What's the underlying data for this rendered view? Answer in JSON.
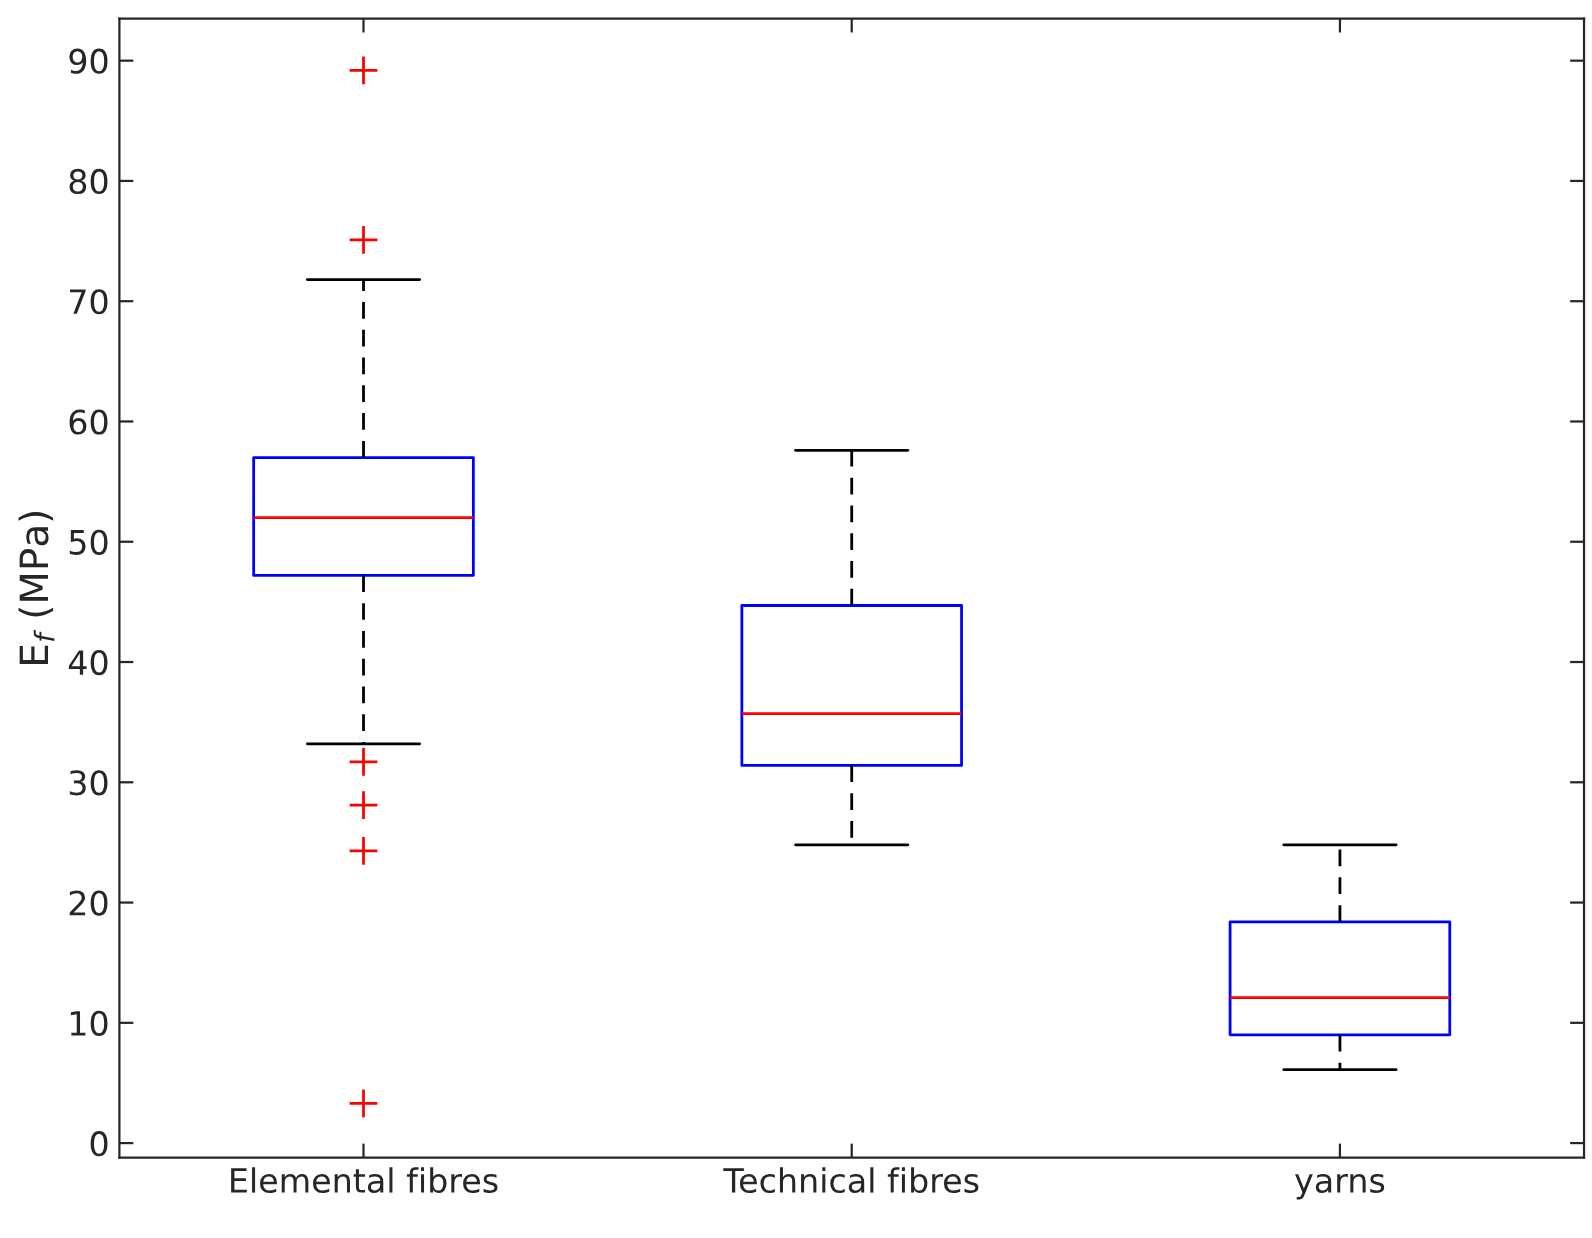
{
  "chart_data": {
    "type": "box",
    "ylabel": "E$_{f}$ (MPa)",
    "categories": [
      "Elemental fibres",
      "Technical fibres",
      "yarns"
    ],
    "color": "#0000ff",
    "boxes": [
      {
        "low": 33.2,
        "q1": 47.2,
        "median": 52.0,
        "q3": 57.0,
        "high": 71.8,
        "outliers": [
          89.2,
          75.1,
          31.7,
          28.1,
          24.3,
          3.3
        ]
      },
      {
        "low": 24.8,
        "q1": 31.4,
        "median": 35.7,
        "q3": 44.7,
        "high": 57.6
      },
      {
        "low": 6.1,
        "q1": 9.0,
        "median": 12.1,
        "q3": 18.4,
        "high": 24.8
      }
    ],
    "ylim": [
      -1.2,
      93.5
    ],
    "yticks": [
      0,
      10,
      20,
      30,
      40,
      50,
      60,
      70,
      80,
      90
    ],
    "grid": false
  }
}
